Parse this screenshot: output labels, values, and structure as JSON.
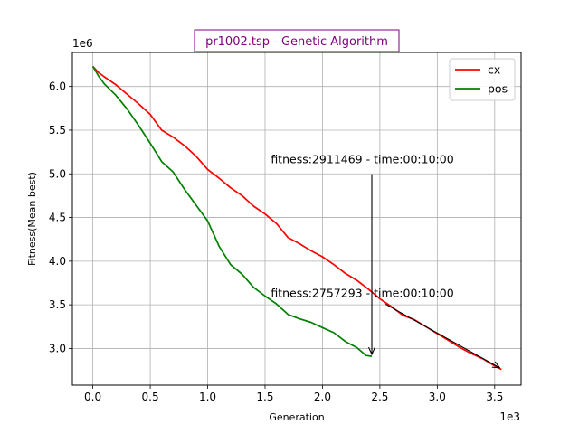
{
  "chart_data": {
    "type": "line",
    "title": "pr1002.tsp - Genetic Algorithm",
    "xlabel": "Generation",
    "ylabel": "Fitness(Mean best)",
    "x_multiplier_label": "1e3",
    "y_multiplier_label": "1e6",
    "xlim": [
      -0.178,
      3.73
    ],
    "ylim": [
      2.58,
      6.39
    ],
    "x_ticks": [
      0.0,
      0.5,
      1.0,
      1.5,
      2.0,
      2.5,
      3.0,
      3.5
    ],
    "x_tick_labels": [
      "0.0",
      "0.5",
      "1.0",
      "1.5",
      "2.0",
      "2.5",
      "3.0",
      "3.5"
    ],
    "y_ticks": [
      3.0,
      3.5,
      4.0,
      4.5,
      5.0,
      5.5,
      6.0
    ],
    "y_tick_labels": [
      "3.0",
      "3.5",
      "4.0",
      "4.5",
      "5.0",
      "5.5",
      "6.0"
    ],
    "grid": true,
    "legend_position": "top-right",
    "series": [
      {
        "name": "cx",
        "color": "#ff0000",
        "x": [
          0.0,
          0.05,
          0.1,
          0.2,
          0.3,
          0.4,
          0.5,
          0.6,
          0.7,
          0.8,
          0.9,
          1.0,
          1.1,
          1.2,
          1.3,
          1.4,
          1.5,
          1.6,
          1.7,
          1.8,
          1.9,
          2.0,
          2.1,
          2.2,
          2.3,
          2.4,
          2.5,
          2.6,
          2.7,
          2.8,
          2.9,
          3.0,
          3.1,
          3.2,
          3.3,
          3.4,
          3.5,
          3.56
        ],
        "y": [
          6.23,
          6.16,
          6.11,
          6.02,
          5.91,
          5.8,
          5.68,
          5.5,
          5.42,
          5.32,
          5.2,
          5.05,
          4.95,
          4.84,
          4.75,
          4.63,
          4.54,
          4.43,
          4.27,
          4.2,
          4.12,
          4.05,
          3.96,
          3.86,
          3.78,
          3.68,
          3.57,
          3.48,
          3.38,
          3.33,
          3.25,
          3.17,
          3.09,
          3.01,
          2.94,
          2.88,
          2.8,
          2.76
        ]
      },
      {
        "name": "pos",
        "color": "#008000",
        "x": [
          0.0,
          0.05,
          0.1,
          0.2,
          0.3,
          0.4,
          0.5,
          0.6,
          0.7,
          0.8,
          0.9,
          1.0,
          1.1,
          1.2,
          1.3,
          1.4,
          1.5,
          1.6,
          1.7,
          1.8,
          1.9,
          2.0,
          2.1,
          2.2,
          2.3,
          2.38,
          2.43
        ],
        "y": [
          6.23,
          6.12,
          6.03,
          5.9,
          5.74,
          5.55,
          5.35,
          5.14,
          5.02,
          4.82,
          4.64,
          4.46,
          4.17,
          3.96,
          3.85,
          3.7,
          3.6,
          3.51,
          3.39,
          3.34,
          3.3,
          3.24,
          3.18,
          3.08,
          3.01,
          2.92,
          2.91
        ]
      }
    ],
    "annotations": [
      {
        "text": "fitness:2911469 - time:00:10:00",
        "x": 2.43,
        "y": 2.911469,
        "text_x": 1.55,
        "text_y": 5.12
      },
      {
        "text": "fitness:2757293 - time:00:10:00",
        "x": 3.56,
        "y": 2.757293,
        "text_x": 1.55,
        "text_y": 3.59
      }
    ]
  }
}
